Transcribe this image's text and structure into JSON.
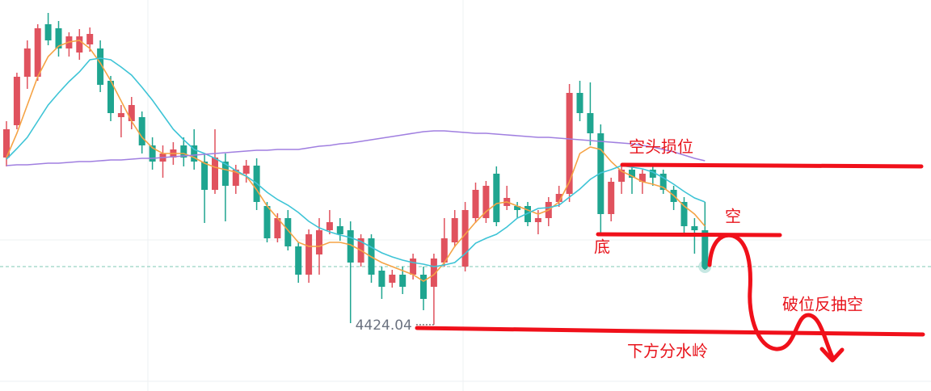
{
  "chart_data": {
    "type": "candlestick",
    "up_color": "#e0525e",
    "down_color": "#1fa590",
    "ylim": [
      4383,
      4625
    ],
    "open": [
      4527.5,
      4547.5,
      4577.5,
      4577.5,
      4610,
      4607.5,
      4595,
      4592.5,
      4597.5,
      4595,
      4575,
      4552.5,
      4550,
      4552.5,
      4535,
      4525,
      4527.5,
      4535,
      4535,
      4525,
      4507.5,
      4525,
      4510,
      4517.5,
      4522.5,
      4497.5,
      4477.5,
      4490,
      4472.5,
      4455,
      4467.5,
      4482.5,
      4485,
      4482.5,
      4462.5,
      4477.5,
      4457.5,
      4450,
      4455,
      4455,
      4455,
      4447.5,
      4462.5,
      4475,
      4460,
      4490,
      4490,
      4517.5,
      4497.5,
      4497.5,
      4497.5,
      4487.5,
      4490,
      4500,
      4505,
      4567.5,
      4555,
      4542.5,
      4492.5,
      4512.5,
      4520,
      4512.5,
      4520,
      4517.5,
      4507.5,
      4500,
      4485,
      4482.5
    ],
    "high": [
      4550,
      4580,
      4600,
      4610,
      4617,
      4612,
      4605,
      4607,
      4608,
      4600,
      4578,
      4560,
      4565,
      4556,
      4540,
      4535,
      4537,
      4540,
      4545,
      4530,
      4545,
      4530,
      4523,
      4526,
      4527,
      4500,
      4493,
      4495,
      4475,
      4483,
      4490,
      4495,
      4490,
      4488,
      4480,
      4480,
      4460,
      4458,
      4460,
      4468,
      4460,
      4468,
      4490,
      4495,
      4500,
      4512,
      4513,
      4522,
      4510,
      4500,
      4500,
      4495,
      4503,
      4510,
      4573,
      4575,
      4574,
      4548,
      4515,
      4522,
      4523,
      4520,
      4523,
      4520,
      4510,
      4503,
      4490,
      4500
    ],
    "low": [
      4522,
      4545,
      4570,
      4575,
      4597,
      4590,
      4590,
      4588,
      4593,
      4568,
      4550,
      4540,
      4545,
      4530,
      4520,
      4515,
      4523,
      4522,
      4520,
      4487,
      4505,
      4488,
      4505,
      4512,
      4495,
      4475,
      4475,
      4470,
      4450,
      4450,
      4455,
      4480,
      4476,
      4425,
      4460,
      4450,
      4440,
      4447,
      4443,
      4452,
      4433,
      4424.04,
      4460,
      4472,
      4457,
      4487,
      4487,
      4485,
      4495,
      4490,
      4485,
      4480,
      4485,
      4497,
      4500,
      4550,
      4535,
      4480,
      4488,
      4505,
      4505,
      4505,
      4510,
      4505,
      4495,
      4480,
      4468,
      4458
    ],
    "close": [
      4545,
      4577.5,
      4595,
      4607.5,
      4600,
      4595,
      4602.5,
      4602.5,
      4604,
      4572.5,
      4555,
      4555,
      4560,
      4535,
      4525,
      4530,
      4532.5,
      4527.5,
      4525,
      4507.5,
      4527.5,
      4510,
      4520,
      4522.5,
      4500,
      4477.5,
      4490,
      4472.5,
      4455,
      4480,
      4482.5,
      4487.5,
      4480,
      4462.5,
      4477.5,
      4455,
      4447.5,
      4455,
      4447.5,
      4465,
      4440,
      4465,
      4477.5,
      4490,
      4495,
      4507.5,
      4510,
      4487.5,
      4502.5,
      4495,
      4487.5,
      4490,
      4500,
      4505,
      4567.5,
      4555,
      4542.5,
      4492.5,
      4512.5,
      4520,
      4515,
      4517.5,
      4515,
      4507.5,
      4500,
      4485,
      4482.5,
      4460
    ],
    "series": [
      {
        "color": "#f5a345",
        "values": [
          4527.5,
          4542.5,
          4560,
          4577.5,
          4590,
          4596.5,
          4599,
          4600,
          4595,
          4586,
          4575,
          4562.5,
          4550,
          4540,
          4533.5,
          4530,
          4530,
          4530,
          4527.5,
          4524,
          4521.5,
          4520,
          4518.5,
          4516,
          4507.5,
          4497.5,
          4490,
          4482.5,
          4475,
          4472.5,
          4472.5,
          4475,
          4475,
          4473.5,
          4470,
          4466,
          4462.5,
          4460,
          4457.5,
          4455,
          4451,
          4455,
          4462.5,
          4472.5,
          4480,
          4487.5,
          4494,
          4499,
          4500,
          4497.5,
          4495,
          4492.5,
          4495,
          4500,
          4512.5,
          4530,
          4534,
          4532.5,
          4525,
          4519,
          4516,
          4512.5,
          4511,
          4509,
          4504,
          4497.5,
          4492.5,
          4485
        ]
      },
      {
        "color": "#3ec4d6",
        "values": [
          4526.5,
          4533,
          4540,
          4550,
          4560,
          4567.5,
          4574.5,
          4580.5,
          4588,
          4589,
          4588,
          4583.5,
          4578.5,
          4571,
          4563,
          4554,
          4545,
          4538.5,
          4532.5,
          4530,
          4527,
          4523.5,
          4519.5,
          4516,
          4511.5,
          4506,
          4501.5,
          4498,
          4493.5,
          4488,
          4484,
          4481.5,
          4479.5,
          4478,
          4475.5,
          4472,
          4468.5,
          4466,
          4464,
          4462.5,
          4461.5,
          4460,
          4461,
          4462.5,
          4468,
          4474.5,
          4477.5,
          4480,
          4484.5,
          4490,
          4493,
          4496,
          4496.5,
          4498,
          4503,
          4508,
          4514,
          4518,
          4520,
          4522.5,
          4521.5,
          4520.5,
          4518.5,
          4515,
          4511,
          4506.5,
          4502.5,
          4500
        ]
      },
      {
        "color": "#a07fe0",
        "values": [
          4522.5,
          4523,
          4523,
          4523.5,
          4524,
          4524,
          4524.5,
          4525,
          4525,
          4525.5,
          4526,
          4526,
          4526.5,
          4527,
          4527,
          4527.5,
          4528,
          4528.5,
          4529,
          4529.5,
          4530,
          4530.5,
          4531,
          4531.5,
          4532,
          4532,
          4532.5,
          4532.5,
          4532.5,
          4533.5,
          4534.5,
          4535,
          4536,
          4536.5,
          4537.5,
          4538.5,
          4539.5,
          4540.5,
          4541.5,
          4542.5,
          4543.5,
          4544,
          4544,
          4543.5,
          4543,
          4542.5,
          4542.5,
          4542,
          4541.5,
          4541,
          4540.5,
          4540,
          4540,
          4539.5,
          4539,
          4538.5,
          4538,
          4537.5,
          4537,
          4536.5,
          4536,
          4535,
          4534,
          4532.5,
          4531,
          4529,
          4527,
          4525.5
        ]
      }
    ],
    "annotations": [
      "空头损位",
      "空",
      "底",
      "破位反抽空",
      "下方分水岭"
    ]
  }
}
